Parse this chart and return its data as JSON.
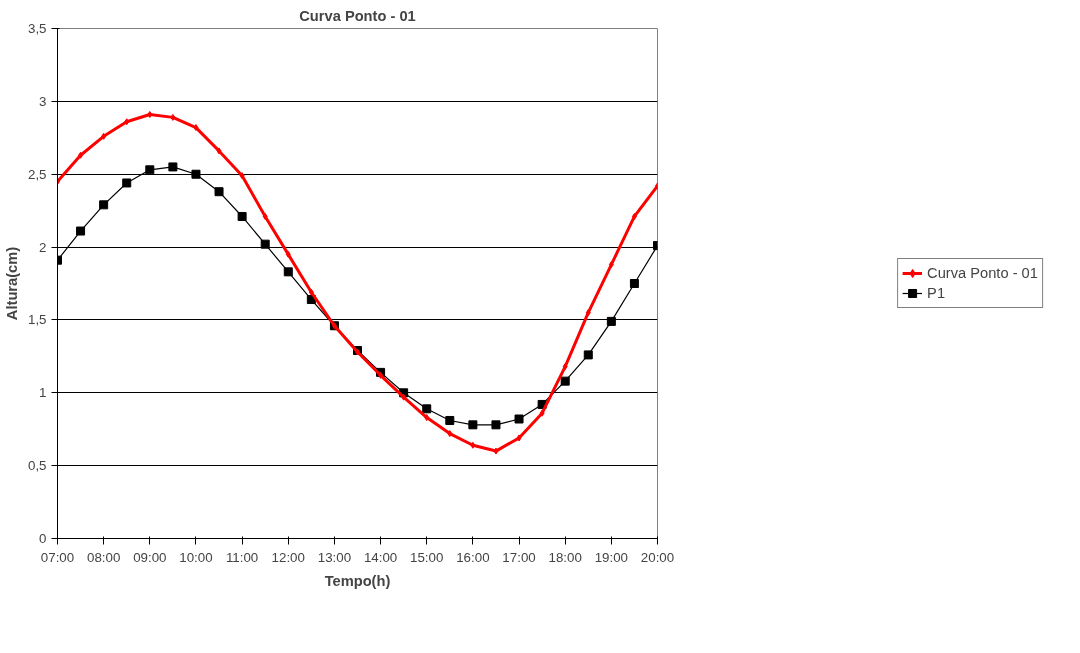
{
  "chart_data": {
    "type": "line",
    "title": "Curva Ponto - 01",
    "xlabel": "Tempo(h)",
    "ylabel": "Altura(cm)",
    "x": [
      7,
      7.5,
      8,
      8.5,
      9,
      9.5,
      10,
      10.5,
      11,
      11.5,
      12,
      12.5,
      13,
      13.5,
      14,
      14.5,
      15,
      15.5,
      16,
      16.5,
      17,
      17.5,
      18,
      18.5,
      19,
      19.5,
      20
    ],
    "series": [
      {
        "name": "Curva Ponto - 01",
        "color": "#ff0000",
        "marker": "diamond",
        "values": [
          2.45,
          2.63,
          2.76,
          2.86,
          2.91,
          2.89,
          2.82,
          2.66,
          2.49,
          2.21,
          1.95,
          1.69,
          1.46,
          1.28,
          1.12,
          0.97,
          0.83,
          0.72,
          0.64,
          0.6,
          0.69,
          0.86,
          1.18,
          1.55,
          1.88,
          2.21,
          2.42
        ]
      },
      {
        "name": "P1",
        "color": "#000000",
        "marker": "square",
        "values": [
          1.91,
          2.11,
          2.29,
          2.44,
          2.53,
          2.55,
          2.5,
          2.38,
          2.21,
          2.02,
          1.83,
          1.64,
          1.46,
          1.29,
          1.14,
          1.0,
          0.89,
          0.81,
          0.78,
          0.78,
          0.82,
          0.92,
          1.08,
          1.26,
          1.49,
          1.75,
          2.01
        ]
      }
    ],
    "xlim": [
      7,
      20
    ],
    "xticks": [
      {
        "value": 7,
        "label": "07:00"
      },
      {
        "value": 8,
        "label": "08:00"
      },
      {
        "value": 9,
        "label": "09:00"
      },
      {
        "value": 10,
        "label": "10:00"
      },
      {
        "value": 11,
        "label": "11:00"
      },
      {
        "value": 12,
        "label": "12:00"
      },
      {
        "value": 13,
        "label": "13:00"
      },
      {
        "value": 14,
        "label": "14:00"
      },
      {
        "value": 15,
        "label": "15:00"
      },
      {
        "value": 16,
        "label": "16:00"
      },
      {
        "value": 17,
        "label": "17:00"
      },
      {
        "value": 18,
        "label": "18:00"
      },
      {
        "value": 19,
        "label": "19:00"
      },
      {
        "value": 20,
        "label": "20:00"
      }
    ],
    "ylim": [
      0,
      3.5
    ],
    "yticks": [
      0,
      {
        "value": 0.5,
        "label": "0,5"
      },
      1,
      {
        "value": 1.5,
        "label": "1,5"
      },
      2,
      {
        "value": 2.5,
        "label": "2,5"
      },
      3,
      {
        "value": 3.5,
        "label": "3,5"
      }
    ],
    "grid": "y",
    "legend": "right"
  }
}
